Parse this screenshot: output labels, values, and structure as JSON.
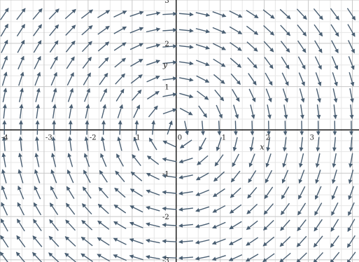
{
  "chart_data": {
    "type": "vector-field",
    "title": "",
    "xlabel": "x",
    "ylabel": "y",
    "xlim": [
      -4,
      4.15
    ],
    "ylim": [
      -3.05,
      3
    ],
    "major_step": 1,
    "minor_step": 0.25,
    "grid": true,
    "x_tick_labels": [
      "-4",
      "-3",
      "-2",
      "-1",
      "0",
      "1",
      "2",
      "3"
    ],
    "y_tick_labels": [
      "3",
      "2",
      "1",
      "-1",
      "-2",
      "-3"
    ],
    "x_tick_values": [
      -4,
      -3,
      -2,
      -1,
      0,
      1,
      2,
      3
    ],
    "y_tick_values": [
      3,
      2,
      1,
      -1,
      -2,
      -3
    ],
    "field": {
      "u": "y",
      "v": "-x",
      "normalized": true
    },
    "sample_step": 0.375,
    "colors": {
      "arrow": "#4a5f73",
      "grid_minor": "#e6e6e6",
      "grid_major": "#c8c8c8",
      "axis": "#000000"
    }
  }
}
